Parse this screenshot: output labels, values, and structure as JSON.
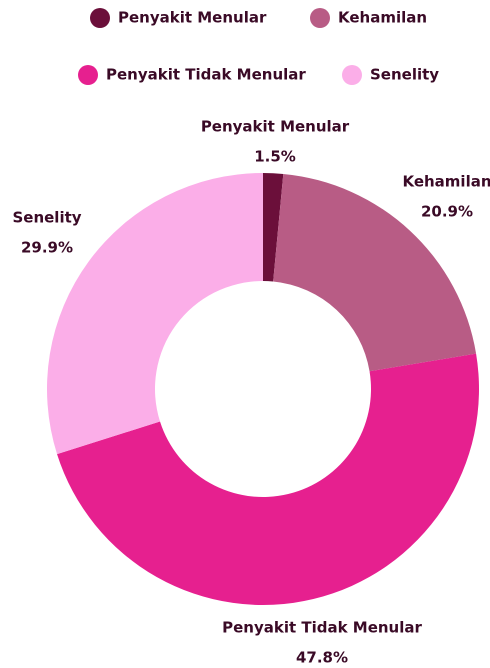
{
  "chart_data": {
    "type": "donut",
    "categories": [
      "Penyakit Menular",
      "Kehamilan",
      "Penyakit Tidak Menular",
      "Senelity"
    ],
    "values": [
      1.5,
      20.9,
      47.8,
      29.9
    ],
    "value_labels": [
      "1.5%",
      "20.9%",
      "47.8%",
      "29.9%"
    ],
    "colors": [
      "#6b0f3a",
      "#b85c85",
      "#e6208f",
      "#fbaee8"
    ],
    "legend": "top"
  }
}
